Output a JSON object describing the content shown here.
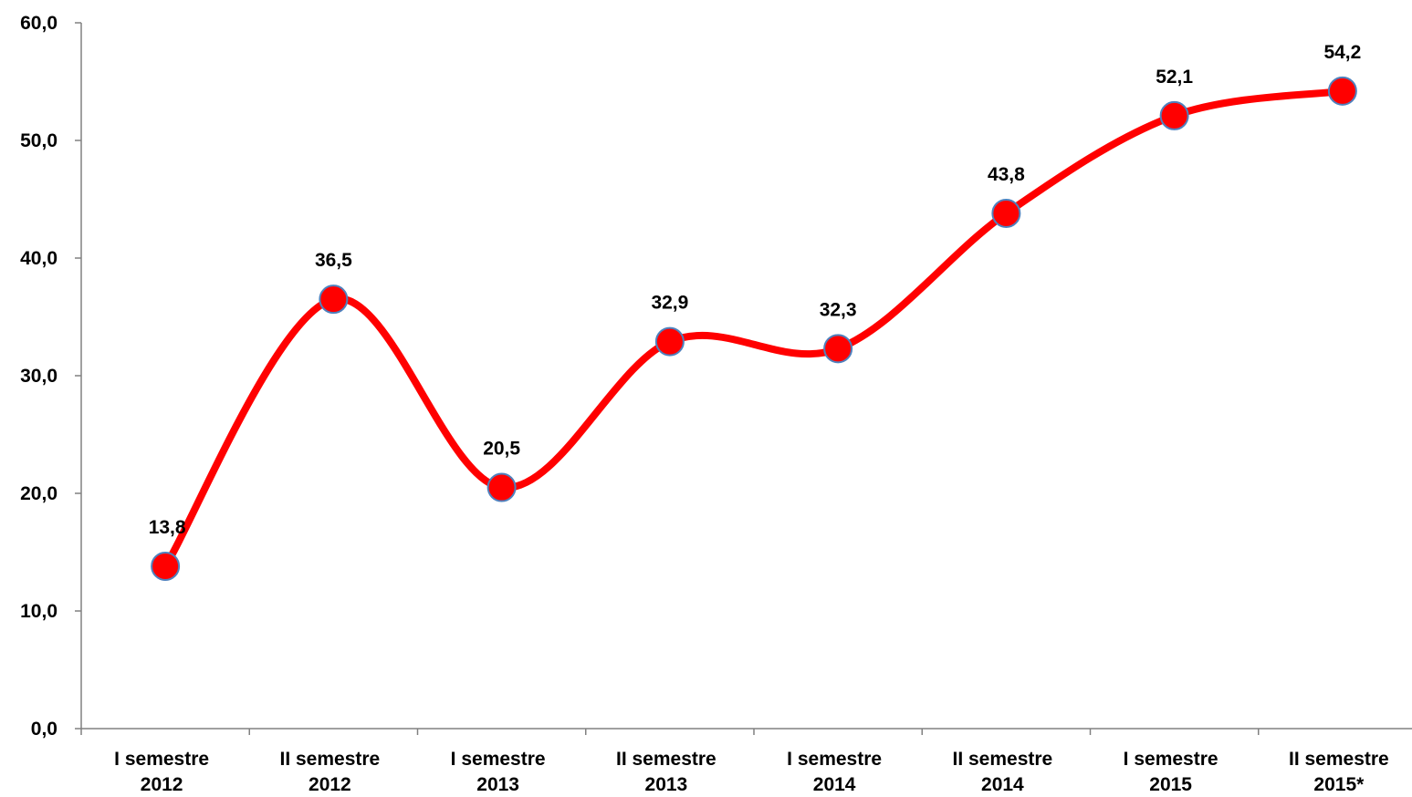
{
  "chart_data": {
    "type": "line",
    "categories": [
      [
        "I semestre",
        "2012"
      ],
      [
        "II semestre",
        "2012"
      ],
      [
        "I semestre",
        "2013"
      ],
      [
        "II semestre",
        "2013"
      ],
      [
        "I semestre",
        "2014"
      ],
      [
        "II semestre",
        "2014"
      ],
      [
        "I semestre",
        "2015"
      ],
      [
        "II semestre",
        "2015*"
      ]
    ],
    "values": [
      13.8,
      36.5,
      20.5,
      32.9,
      32.3,
      43.8,
      52.1,
      54.2
    ],
    "data_labels": [
      "13,8",
      "36,5",
      "20,5",
      "32,9",
      "32,3",
      "43,8",
      "52,1",
      "54,2"
    ],
    "yticks": [
      0,
      10,
      20,
      30,
      40,
      50,
      60
    ],
    "ytick_labels": [
      "0,0",
      "10,0",
      "20,0",
      "30,0",
      "40,0",
      "50,0",
      "60,0"
    ],
    "ylim": [
      0,
      60
    ],
    "smooth": true,
    "grid": false,
    "legend": "none",
    "colors": {
      "line": "#ff0000",
      "marker_fill": "#ff0000",
      "marker_stroke": "#4f81bd",
      "axis": "#808080",
      "text": "#000000"
    }
  }
}
